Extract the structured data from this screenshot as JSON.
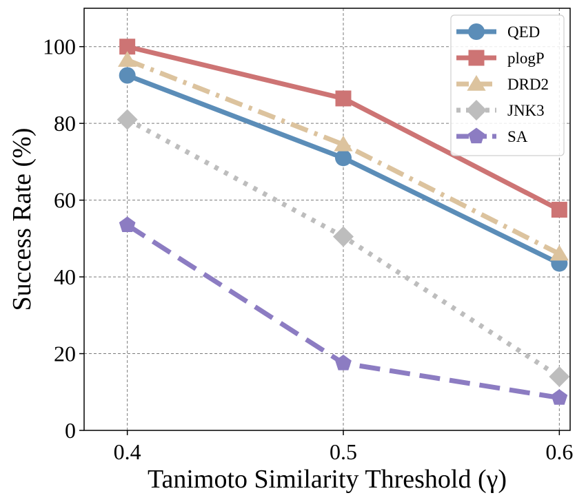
{
  "chart_data": {
    "type": "line",
    "title": "",
    "xlabel": "Tanimoto Similarity Threshold (γ)",
    "ylabel": "Success Rate (%)",
    "x": [
      0.4,
      0.5,
      0.6
    ],
    "x_tick_labels": [
      "0.4",
      "0.5",
      "0.6"
    ],
    "xlim": [
      0.38,
      0.605
    ],
    "ylim": [
      0,
      110
    ],
    "y_ticks": [
      0,
      20,
      40,
      60,
      80,
      100
    ],
    "y_tick_labels": [
      "0",
      "20",
      "40",
      "60",
      "80",
      "100"
    ],
    "grid": true,
    "legend_position": "top-right",
    "series": [
      {
        "name": "QED",
        "values": [
          92.5,
          71,
          43.5
        ],
        "color": "#5b8db8",
        "marker": "circle",
        "line_style": "solid"
      },
      {
        "name": "plogP",
        "values": [
          100,
          86.5,
          57.5
        ],
        "color": "#cd7474",
        "marker": "square",
        "line_style": "solid"
      },
      {
        "name": "DRD2",
        "values": [
          96.5,
          74.5,
          46
        ],
        "color": "#dcc39e",
        "marker": "triangle",
        "line_style": "dashdot"
      },
      {
        "name": "JNK3",
        "values": [
          81,
          50.5,
          14
        ],
        "color": "#bdbdbd",
        "marker": "diamond",
        "line_style": "dotted"
      },
      {
        "name": "SA",
        "values": [
          53.5,
          17.5,
          8.5
        ],
        "color": "#8c7cc2",
        "marker": "pentagon",
        "line_style": "dashed"
      }
    ]
  }
}
